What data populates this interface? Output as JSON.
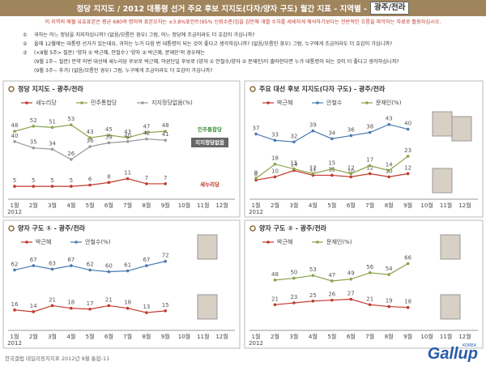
{
  "header": {
    "title": "정당 지지도 / 2012 대통령 선거 주요 후보 지지도(다자/양자 구도) 월간 지표 - 지역별 -",
    "region": "광주/전라"
  },
  "note": "이 지역의 매월 유효표본은 평균 680여 명이며 표본오차는 ±3.8%포인트(95% 신뢰수준)임을 감안해 개별 수치를 세세하게 해석하기보다는 전반적인 흐름을 파악하는 자료로 활용하십시오.",
  "questions": [
    {
      "mark": "①",
      "text": "귀하는 어느 정당을 지지하십니까? (없음/모름인 경우) 그럼, 어느 정당에 조금이라도 더 호감이 가십니까?"
    },
    {
      "mark": "②",
      "text": "올해 12월에는 대통령 선거가 있는데요, 귀하는 누가 다음 번 대통령이 되는 것이 좋다고 생각하십니까? (없음/모름인 경우) 그럼, 누구에게 조금이라도 더 호감이 가십니까?"
    },
    {
      "mark": "③",
      "text": "(<8월 5주> 질문) '양자 ① 박근혜, 안철수'/ '양자 ② 박근혜, 문재인'의 경우에는"
    },
    {
      "text": "(9월 1주~ 질문) 만약 이번 대선에 새누리당 후보로 박근혜, 야권단일 후보로 (양자 ① 안철수/양자 ② 문재인)이 출마한다면 누가 대통령이 되는 것이 더 좋다고 생각하십니까?"
    },
    {
      "text": "(9월 3주~ 추가) (없음/모름인 경우) 그럼, 누구에게 조금이라도 더 호감이 가십니까?"
    }
  ],
  "chart_data": [
    {
      "type": "line",
      "title": "정당 지지도 - 광주/전라",
      "year": "2012",
      "categories": [
        "1월",
        "2월",
        "3월",
        "4월",
        "5월",
        "6월",
        "7월",
        "8월",
        "9월",
        "10월",
        "11월",
        "12월"
      ],
      "ylim": [
        0,
        62
      ],
      "logos": [
        "민주통합당",
        "지지정당없음",
        "새누리당"
      ],
      "series": [
        {
          "name": "새누리당",
          "color": "#c0392b",
          "values": [
            5,
            5,
            5,
            5,
            6,
            8,
            11,
            7,
            7,
            null,
            null,
            null
          ]
        },
        {
          "name": "민주통합당",
          "color": "#8aa34a",
          "values": [
            48,
            52,
            51,
            53,
            43,
            45,
            43,
            47,
            48,
            null,
            null,
            null
          ]
        },
        {
          "name": "지지정당없음(%)",
          "color": "#999999",
          "values": [
            40,
            35,
            34,
            26,
            36,
            39,
            40,
            42,
            41,
            null,
            null,
            null
          ]
        }
      ]
    },
    {
      "type": "line",
      "title": "주요 대선 후보 지지도(다자 구도) - 광주/전라",
      "year": "2012",
      "categories": [
        "1월",
        "2월",
        "3월",
        "4월",
        "5월",
        "6월",
        "7월",
        "8월",
        "9월",
        "10월",
        "11월",
        "12월"
      ],
      "ylim": [
        0,
        50
      ],
      "series": [
        {
          "name": "박근혜",
          "color": "#c0392b",
          "values": [
            8,
            10,
            14,
            11,
            11,
            10,
            12,
            10,
            12,
            null,
            null,
            null
          ]
        },
        {
          "name": "안철수",
          "color": "#4a7ab0",
          "values": [
            37,
            33,
            32,
            39,
            34,
            36,
            38,
            43,
            40,
            null,
            null,
            null
          ]
        },
        {
          "name": "문재인(%)",
          "color": "#8aa34a",
          "values": [
            9,
            18,
            15,
            12,
            15,
            12,
            17,
            14,
            23,
            null,
            null,
            null
          ]
        }
      ]
    },
    {
      "type": "line",
      "title": "양자 구도 ① - 광주/전라",
      "year": "2012",
      "categories": [
        "1월",
        "2월",
        "3월",
        "4월",
        "5월",
        "6월",
        "7월",
        "8월",
        "9월",
        "10월",
        "11월",
        "12월"
      ],
      "ylim": [
        0,
        82
      ],
      "series": [
        {
          "name": "박근혜",
          "color": "#c0392b",
          "values": [
            16,
            14,
            21,
            18,
            17,
            21,
            18,
            13,
            15,
            null,
            null,
            null
          ]
        },
        {
          "name": "안철수(%)",
          "color": "#4a7ab0",
          "values": [
            62,
            67,
            63,
            67,
            62,
            60,
            61,
            67,
            72,
            null,
            null,
            null
          ]
        }
      ]
    },
    {
      "type": "line",
      "title": "양자 구도 ② - 광주/전라",
      "year": "2012",
      "categories": [
        "1월",
        "2월",
        "3월",
        "4월",
        "5월",
        "6월",
        "7월",
        "8월",
        "9월",
        "10월",
        "11월",
        "12월"
      ],
      "ylim": [
        0,
        78
      ],
      "series": [
        {
          "name": "박근혜",
          "color": "#c0392b",
          "values": [
            null,
            21,
            23,
            25,
            26,
            27,
            21,
            19,
            18,
            null,
            null,
            null
          ]
        },
        {
          "name": "문재인(%)",
          "color": "#8aa34a",
          "values": [
            null,
            48,
            50,
            53,
            47,
            49,
            56,
            54,
            66,
            null,
            null,
            null
          ]
        }
      ]
    }
  ],
  "footer": {
    "source": "한국갤럽 데일리정치지표 2012년 9월 통합-11",
    "logo": "Gallup",
    "logo_sub": "KOREA"
  }
}
